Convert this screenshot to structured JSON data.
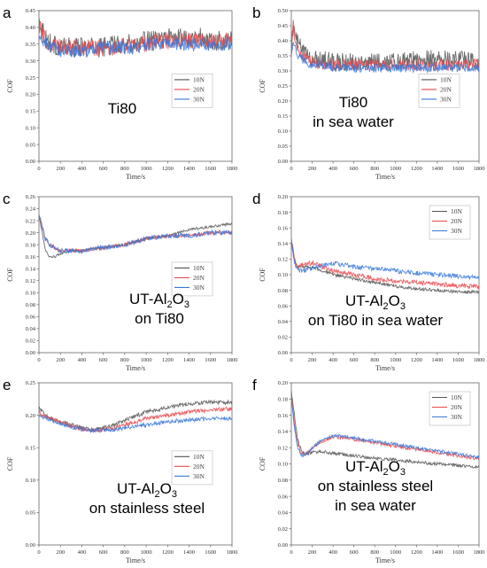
{
  "chart_data": [
    {
      "panel": "a",
      "type": "line",
      "xlabel": "Time/s",
      "ylabel": "COF",
      "xlim": [
        0,
        1800
      ],
      "ylim": [
        0.0,
        0.45
      ],
      "xticks": [
        0,
        200,
        400,
        600,
        800,
        1000,
        1200,
        1400,
        1600,
        1800
      ],
      "yticks": [
        0.0,
        0.05,
        0.1,
        0.15,
        0.2,
        0.25,
        0.3,
        0.35,
        0.4,
        0.45
      ],
      "ytick_labels": [
        "0.00",
        "0.05",
        "0.10",
        "0.15",
        "0.20",
        "0.25",
        "0.30",
        "0.35",
        "0.40",
        "0.45"
      ],
      "annotation": [
        "Ti80"
      ],
      "legend_position": "right-middle",
      "series": [
        {
          "name": "10N",
          "color": "#555555",
          "x": [
            0,
            30,
            60,
            120,
            200,
            300,
            400,
            500,
            600,
            700,
            800,
            900,
            1000,
            1100,
            1200,
            1300,
            1400,
            1500,
            1600,
            1700,
            1800
          ],
          "values": [
            0.42,
            0.4,
            0.37,
            0.35,
            0.34,
            0.34,
            0.34,
            0.34,
            0.34,
            0.35,
            0.35,
            0.35,
            0.36,
            0.36,
            0.37,
            0.37,
            0.37,
            0.37,
            0.36,
            0.36,
            0.36
          ],
          "noise": 0.03
        },
        {
          "name": "20N",
          "color": "#e8494f",
          "x": [
            0,
            30,
            60,
            120,
            200,
            300,
            400,
            500,
            600,
            700,
            800,
            900,
            1000,
            1100,
            1200,
            1300,
            1400,
            1500,
            1600,
            1700,
            1800
          ],
          "values": [
            0.41,
            0.38,
            0.36,
            0.35,
            0.34,
            0.34,
            0.34,
            0.34,
            0.34,
            0.34,
            0.35,
            0.35,
            0.35,
            0.36,
            0.36,
            0.36,
            0.36,
            0.36,
            0.36,
            0.36,
            0.36
          ],
          "noise": 0.025
        },
        {
          "name": "30N",
          "color": "#3a78d8",
          "x": [
            0,
            30,
            60,
            120,
            200,
            300,
            400,
            500,
            600,
            700,
            800,
            900,
            1000,
            1100,
            1200,
            1300,
            1400,
            1500,
            1600,
            1700,
            1800
          ],
          "values": [
            0.37,
            0.36,
            0.35,
            0.34,
            0.33,
            0.33,
            0.33,
            0.33,
            0.34,
            0.34,
            0.34,
            0.34,
            0.35,
            0.35,
            0.35,
            0.35,
            0.35,
            0.35,
            0.35,
            0.35,
            0.35
          ],
          "noise": 0.02
        }
      ]
    },
    {
      "panel": "b",
      "type": "line",
      "xlabel": "Time/s",
      "ylabel": "COF",
      "xlim": [
        0,
        1800
      ],
      "ylim": [
        0.0,
        0.5
      ],
      "xticks": [
        0,
        200,
        400,
        600,
        800,
        1000,
        1200,
        1400,
        1600,
        1800
      ],
      "yticks": [
        0.0,
        0.05,
        0.1,
        0.15,
        0.2,
        0.25,
        0.3,
        0.35,
        0.4,
        0.45,
        0.5
      ],
      "ytick_labels": [
        "0.00",
        "0.05",
        "0.10",
        "0.15",
        "0.20",
        "0.25",
        "0.30",
        "0.35",
        "0.40",
        "0.45",
        "0.50"
      ],
      "annotation": [
        "Ti80",
        "in sea water"
      ],
      "legend_position": "right-middle",
      "series": [
        {
          "name": "10N",
          "color": "#555555",
          "x": [
            0,
            20,
            50,
            100,
            150,
            200,
            300,
            400,
            500,
            600,
            800,
            1000,
            1200,
            1400,
            1600,
            1800
          ],
          "values": [
            0.38,
            0.44,
            0.4,
            0.37,
            0.35,
            0.34,
            0.34,
            0.33,
            0.33,
            0.33,
            0.33,
            0.33,
            0.34,
            0.34,
            0.34,
            0.33
          ],
          "noise": 0.03
        },
        {
          "name": "20N",
          "color": "#e8494f",
          "x": [
            0,
            20,
            50,
            100,
            150,
            200,
            300,
            400,
            500,
            600,
            800,
            1000,
            1200,
            1400,
            1600,
            1800
          ],
          "values": [
            0.37,
            0.45,
            0.38,
            0.35,
            0.34,
            0.33,
            0.32,
            0.32,
            0.32,
            0.32,
            0.32,
            0.32,
            0.32,
            0.32,
            0.32,
            0.32
          ],
          "noise": 0.02
        },
        {
          "name": "30N",
          "color": "#3a78d8",
          "x": [
            0,
            20,
            50,
            100,
            150,
            200,
            300,
            400,
            500,
            600,
            800,
            1000,
            1200,
            1400,
            1600,
            1800
          ],
          "values": [
            0.36,
            0.4,
            0.36,
            0.34,
            0.33,
            0.32,
            0.32,
            0.31,
            0.31,
            0.31,
            0.31,
            0.31,
            0.31,
            0.31,
            0.31,
            0.31
          ],
          "noise": 0.015
        }
      ]
    },
    {
      "panel": "c",
      "type": "line",
      "xlabel": "Time/s",
      "ylabel": "COF",
      "xlim": [
        0,
        1800
      ],
      "ylim": [
        0.0,
        0.26
      ],
      "xticks": [
        0,
        200,
        400,
        600,
        800,
        1000,
        1200,
        1400,
        1600,
        1800
      ],
      "yticks": [
        0.0,
        0.02,
        0.04,
        0.06,
        0.08,
        0.1,
        0.12,
        0.14,
        0.16,
        0.18,
        0.2,
        0.22,
        0.24,
        0.26
      ],
      "ytick_labels": [
        "0.00",
        "0.02",
        "0.04",
        "0.06",
        "0.08",
        "0.10",
        "0.12",
        "0.14",
        "0.16",
        "0.18",
        "0.20",
        "0.22",
        "0.24",
        "0.26"
      ],
      "annotation": [
        "UT-Al2O3",
        "on Ti80"
      ],
      "legend_position": "right-middle",
      "series": [
        {
          "name": "10N",
          "color": "#555555",
          "x": [
            0,
            30,
            60,
            100,
            150,
            200,
            300,
            400,
            600,
            800,
            1000,
            1200,
            1300,
            1400,
            1600,
            1800
          ],
          "values": [
            0.23,
            0.2,
            0.17,
            0.16,
            0.16,
            0.165,
            0.17,
            0.17,
            0.175,
            0.18,
            0.19,
            0.195,
            0.2,
            0.205,
            0.21,
            0.215
          ],
          "noise": 0.002
        },
        {
          "name": "20N",
          "color": "#e8494f",
          "x": [
            0,
            30,
            60,
            100,
            150,
            200,
            300,
            400,
            600,
            800,
            1000,
            1200,
            1400,
            1600,
            1800
          ],
          "values": [
            0.23,
            0.21,
            0.19,
            0.18,
            0.175,
            0.17,
            0.17,
            0.17,
            0.175,
            0.18,
            0.19,
            0.195,
            0.195,
            0.2,
            0.2
          ],
          "noise": 0.003
        },
        {
          "name": "30N",
          "color": "#3a78d8",
          "x": [
            0,
            30,
            60,
            100,
            150,
            200,
            300,
            400,
            600,
            800,
            1000,
            1200,
            1400,
            1600,
            1800
          ],
          "values": [
            0.23,
            0.21,
            0.19,
            0.18,
            0.175,
            0.17,
            0.17,
            0.17,
            0.175,
            0.18,
            0.19,
            0.195,
            0.195,
            0.2,
            0.2
          ],
          "noise": 0.004
        }
      ]
    },
    {
      "panel": "d",
      "type": "line",
      "xlabel": "Time/s",
      "ylabel": "COF",
      "xlim": [
        0,
        1800
      ],
      "ylim": [
        0.0,
        0.2
      ],
      "xticks": [
        0,
        200,
        400,
        600,
        800,
        1000,
        1200,
        1400,
        1600,
        1800
      ],
      "yticks": [
        0.0,
        0.02,
        0.04,
        0.06,
        0.08,
        0.1,
        0.12,
        0.14,
        0.16,
        0.18,
        0.2
      ],
      "ytick_labels": [
        "0.00",
        "0.02",
        "0.04",
        "0.06",
        "0.08",
        "0.10",
        "0.12",
        "0.14",
        "0.16",
        "0.18",
        "0.20"
      ],
      "annotation": [
        "UT-Al2O3",
        "on Ti80 in sea water"
      ],
      "legend_position": "top-right",
      "series": [
        {
          "name": "10N",
          "color": "#555555",
          "x": [
            0,
            30,
            60,
            100,
            200,
            300,
            400,
            600,
            800,
            1000,
            1200,
            1400,
            1600,
            1800
          ],
          "values": [
            0.14,
            0.12,
            0.11,
            0.11,
            0.11,
            0.105,
            0.1,
            0.095,
            0.09,
            0.085,
            0.082,
            0.08,
            0.078,
            0.078
          ],
          "noise": 0.002
        },
        {
          "name": "20N",
          "color": "#e8494f",
          "x": [
            0,
            30,
            60,
            100,
            200,
            300,
            400,
            600,
            800,
            1000,
            1200,
            1400,
            1600,
            1800
          ],
          "values": [
            0.145,
            0.12,
            0.11,
            0.112,
            0.115,
            0.11,
            0.105,
            0.1,
            0.095,
            0.092,
            0.09,
            0.088,
            0.086,
            0.085
          ],
          "noise": 0.003
        },
        {
          "name": "30N",
          "color": "#3a78d8",
          "x": [
            0,
            30,
            60,
            100,
            200,
            300,
            400,
            600,
            800,
            1000,
            1200,
            1400,
            1600,
            1800
          ],
          "values": [
            0.145,
            0.115,
            0.105,
            0.105,
            0.108,
            0.112,
            0.115,
            0.11,
            0.108,
            0.105,
            0.102,
            0.1,
            0.098,
            0.096
          ],
          "noise": 0.003
        }
      ]
    },
    {
      "panel": "e",
      "type": "line",
      "xlabel": "Time/s",
      "ylabel": "COF",
      "xlim": [
        0,
        1800
      ],
      "ylim": [
        0.0,
        0.25
      ],
      "xticks": [
        0,
        200,
        400,
        600,
        800,
        1000,
        1200,
        1400,
        1600,
        1800
      ],
      "yticks": [
        0.0,
        0.05,
        0.1,
        0.15,
        0.2,
        0.25
      ],
      "ytick_labels": [
        "0.00",
        "0.05",
        "0.10",
        "0.15",
        "0.20",
        "0.25"
      ],
      "annotation": [
        "UT-Al2O3",
        "on stainless steel"
      ],
      "legend_position": "right-middle",
      "series": [
        {
          "name": "10N",
          "color": "#555555",
          "x": [
            0,
            30,
            100,
            200,
            300,
            400,
            500,
            600,
            700,
            800,
            1000,
            1200,
            1400,
            1600,
            1800
          ],
          "values": [
            0.215,
            0.205,
            0.195,
            0.19,
            0.185,
            0.18,
            0.178,
            0.18,
            0.185,
            0.192,
            0.205,
            0.212,
            0.218,
            0.22,
            0.22
          ],
          "noise": 0.003
        },
        {
          "name": "20N",
          "color": "#e8494f",
          "x": [
            0,
            30,
            100,
            200,
            300,
            400,
            500,
            600,
            700,
            800,
            1000,
            1200,
            1400,
            1600,
            1800
          ],
          "values": [
            0.205,
            0.2,
            0.195,
            0.19,
            0.183,
            0.178,
            0.176,
            0.178,
            0.18,
            0.185,
            0.195,
            0.2,
            0.205,
            0.208,
            0.21
          ],
          "noise": 0.003
        },
        {
          "name": "30N",
          "color": "#3a78d8",
          "x": [
            0,
            30,
            100,
            200,
            300,
            400,
            500,
            600,
            700,
            800,
            1000,
            1200,
            1400,
            1600,
            1800
          ],
          "values": [
            0.2,
            0.198,
            0.193,
            0.188,
            0.182,
            0.178,
            0.176,
            0.177,
            0.178,
            0.18,
            0.185,
            0.19,
            0.193,
            0.195,
            0.195
          ],
          "noise": 0.003
        }
      ]
    },
    {
      "panel": "f",
      "type": "line",
      "xlabel": "Time/s",
      "ylabel": "COF",
      "xlim": [
        0,
        1800
      ],
      "ylim": [
        0.0,
        0.2
      ],
      "xticks": [
        0,
        200,
        400,
        600,
        800,
        1000,
        1200,
        1400,
        1600,
        1800
      ],
      "yticks": [
        0.0,
        0.02,
        0.04,
        0.06,
        0.08,
        0.1,
        0.12,
        0.14,
        0.16,
        0.18,
        0.2
      ],
      "ytick_labels": [
        "0.00",
        "0.02",
        "0.04",
        "0.06",
        "0.08",
        "0.10",
        "0.12",
        "0.14",
        "0.16",
        "0.18",
        "0.20"
      ],
      "annotation": [
        "UT-Al2O3",
        "on stainless steel",
        "in sea water"
      ],
      "legend_position": "top-right",
      "series": [
        {
          "name": "10N",
          "color": "#555555",
          "x": [
            0,
            30,
            60,
            100,
            150,
            200,
            300,
            400,
            600,
            800,
            1000,
            1200,
            1400,
            1600,
            1800
          ],
          "values": [
            0.19,
            0.16,
            0.13,
            0.115,
            0.112,
            0.114,
            0.115,
            0.113,
            0.11,
            0.107,
            0.105,
            0.102,
            0.1,
            0.098,
            0.096
          ],
          "noise": 0.002
        },
        {
          "name": "20N",
          "color": "#e8494f",
          "x": [
            0,
            30,
            60,
            100,
            150,
            200,
            300,
            400,
            500,
            600,
            800,
            1000,
            1200,
            1400,
            1600,
            1800
          ],
          "values": [
            0.185,
            0.15,
            0.125,
            0.112,
            0.113,
            0.12,
            0.128,
            0.133,
            0.132,
            0.13,
            0.126,
            0.122,
            0.118,
            0.114,
            0.11,
            0.106
          ],
          "noise": 0.002
        },
        {
          "name": "30N",
          "color": "#3a78d8",
          "x": [
            0,
            30,
            60,
            100,
            150,
            200,
            300,
            400,
            500,
            600,
            800,
            1000,
            1200,
            1400,
            1600,
            1800
          ],
          "values": [
            0.18,
            0.145,
            0.12,
            0.11,
            0.112,
            0.12,
            0.13,
            0.135,
            0.134,
            0.132,
            0.128,
            0.124,
            0.12,
            0.116,
            0.112,
            0.108
          ],
          "noise": 0.002
        }
      ]
    }
  ]
}
